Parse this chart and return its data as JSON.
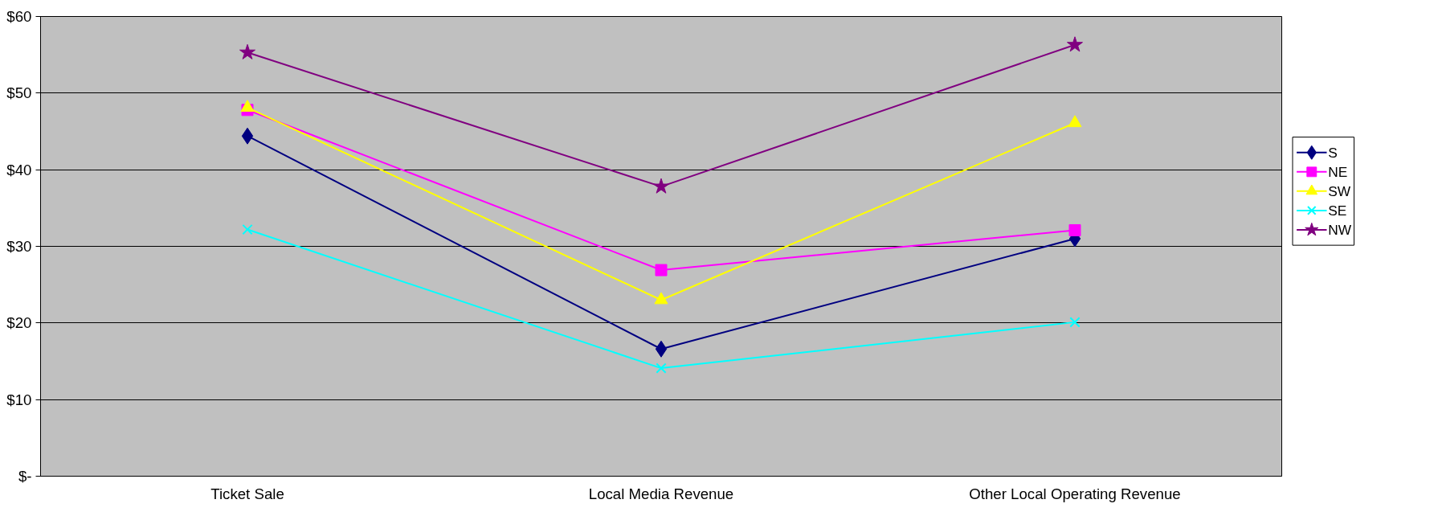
{
  "chart_data": {
    "type": "line",
    "categories": [
      "Ticket Sale",
      "Local Media Revenue",
      "Other Local Operating Revenue"
    ],
    "series": [
      {
        "name": "S",
        "color": "#000080",
        "marker": "diamond",
        "values": [
          44.4,
          16.6,
          31.0
        ]
      },
      {
        "name": "NE",
        "color": "#ff00ff",
        "marker": "square",
        "values": [
          47.8,
          26.9,
          32.1
        ]
      },
      {
        "name": "SW",
        "color": "#ffff00",
        "marker": "triangle",
        "values": [
          48.1,
          23.0,
          46.1
        ]
      },
      {
        "name": "SE",
        "color": "#00ffff",
        "marker": "cross",
        "values": [
          32.2,
          14.1,
          20.1
        ]
      },
      {
        "name": "NW",
        "color": "#800080",
        "marker": "star",
        "values": [
          55.3,
          37.8,
          56.3
        ]
      }
    ],
    "ylim": [
      0,
      60
    ],
    "yticks": [
      {
        "value": 0,
        "label": "$-"
      },
      {
        "value": 10,
        "label": "$10"
      },
      {
        "value": 20,
        "label": "$20"
      },
      {
        "value": 30,
        "label": "$30"
      },
      {
        "value": 40,
        "label": "$40"
      },
      {
        "value": 50,
        "label": "$50"
      },
      {
        "value": 60,
        "label": "$60"
      }
    ],
    "grid": "y",
    "legend": "right",
    "line_style": "solid"
  }
}
